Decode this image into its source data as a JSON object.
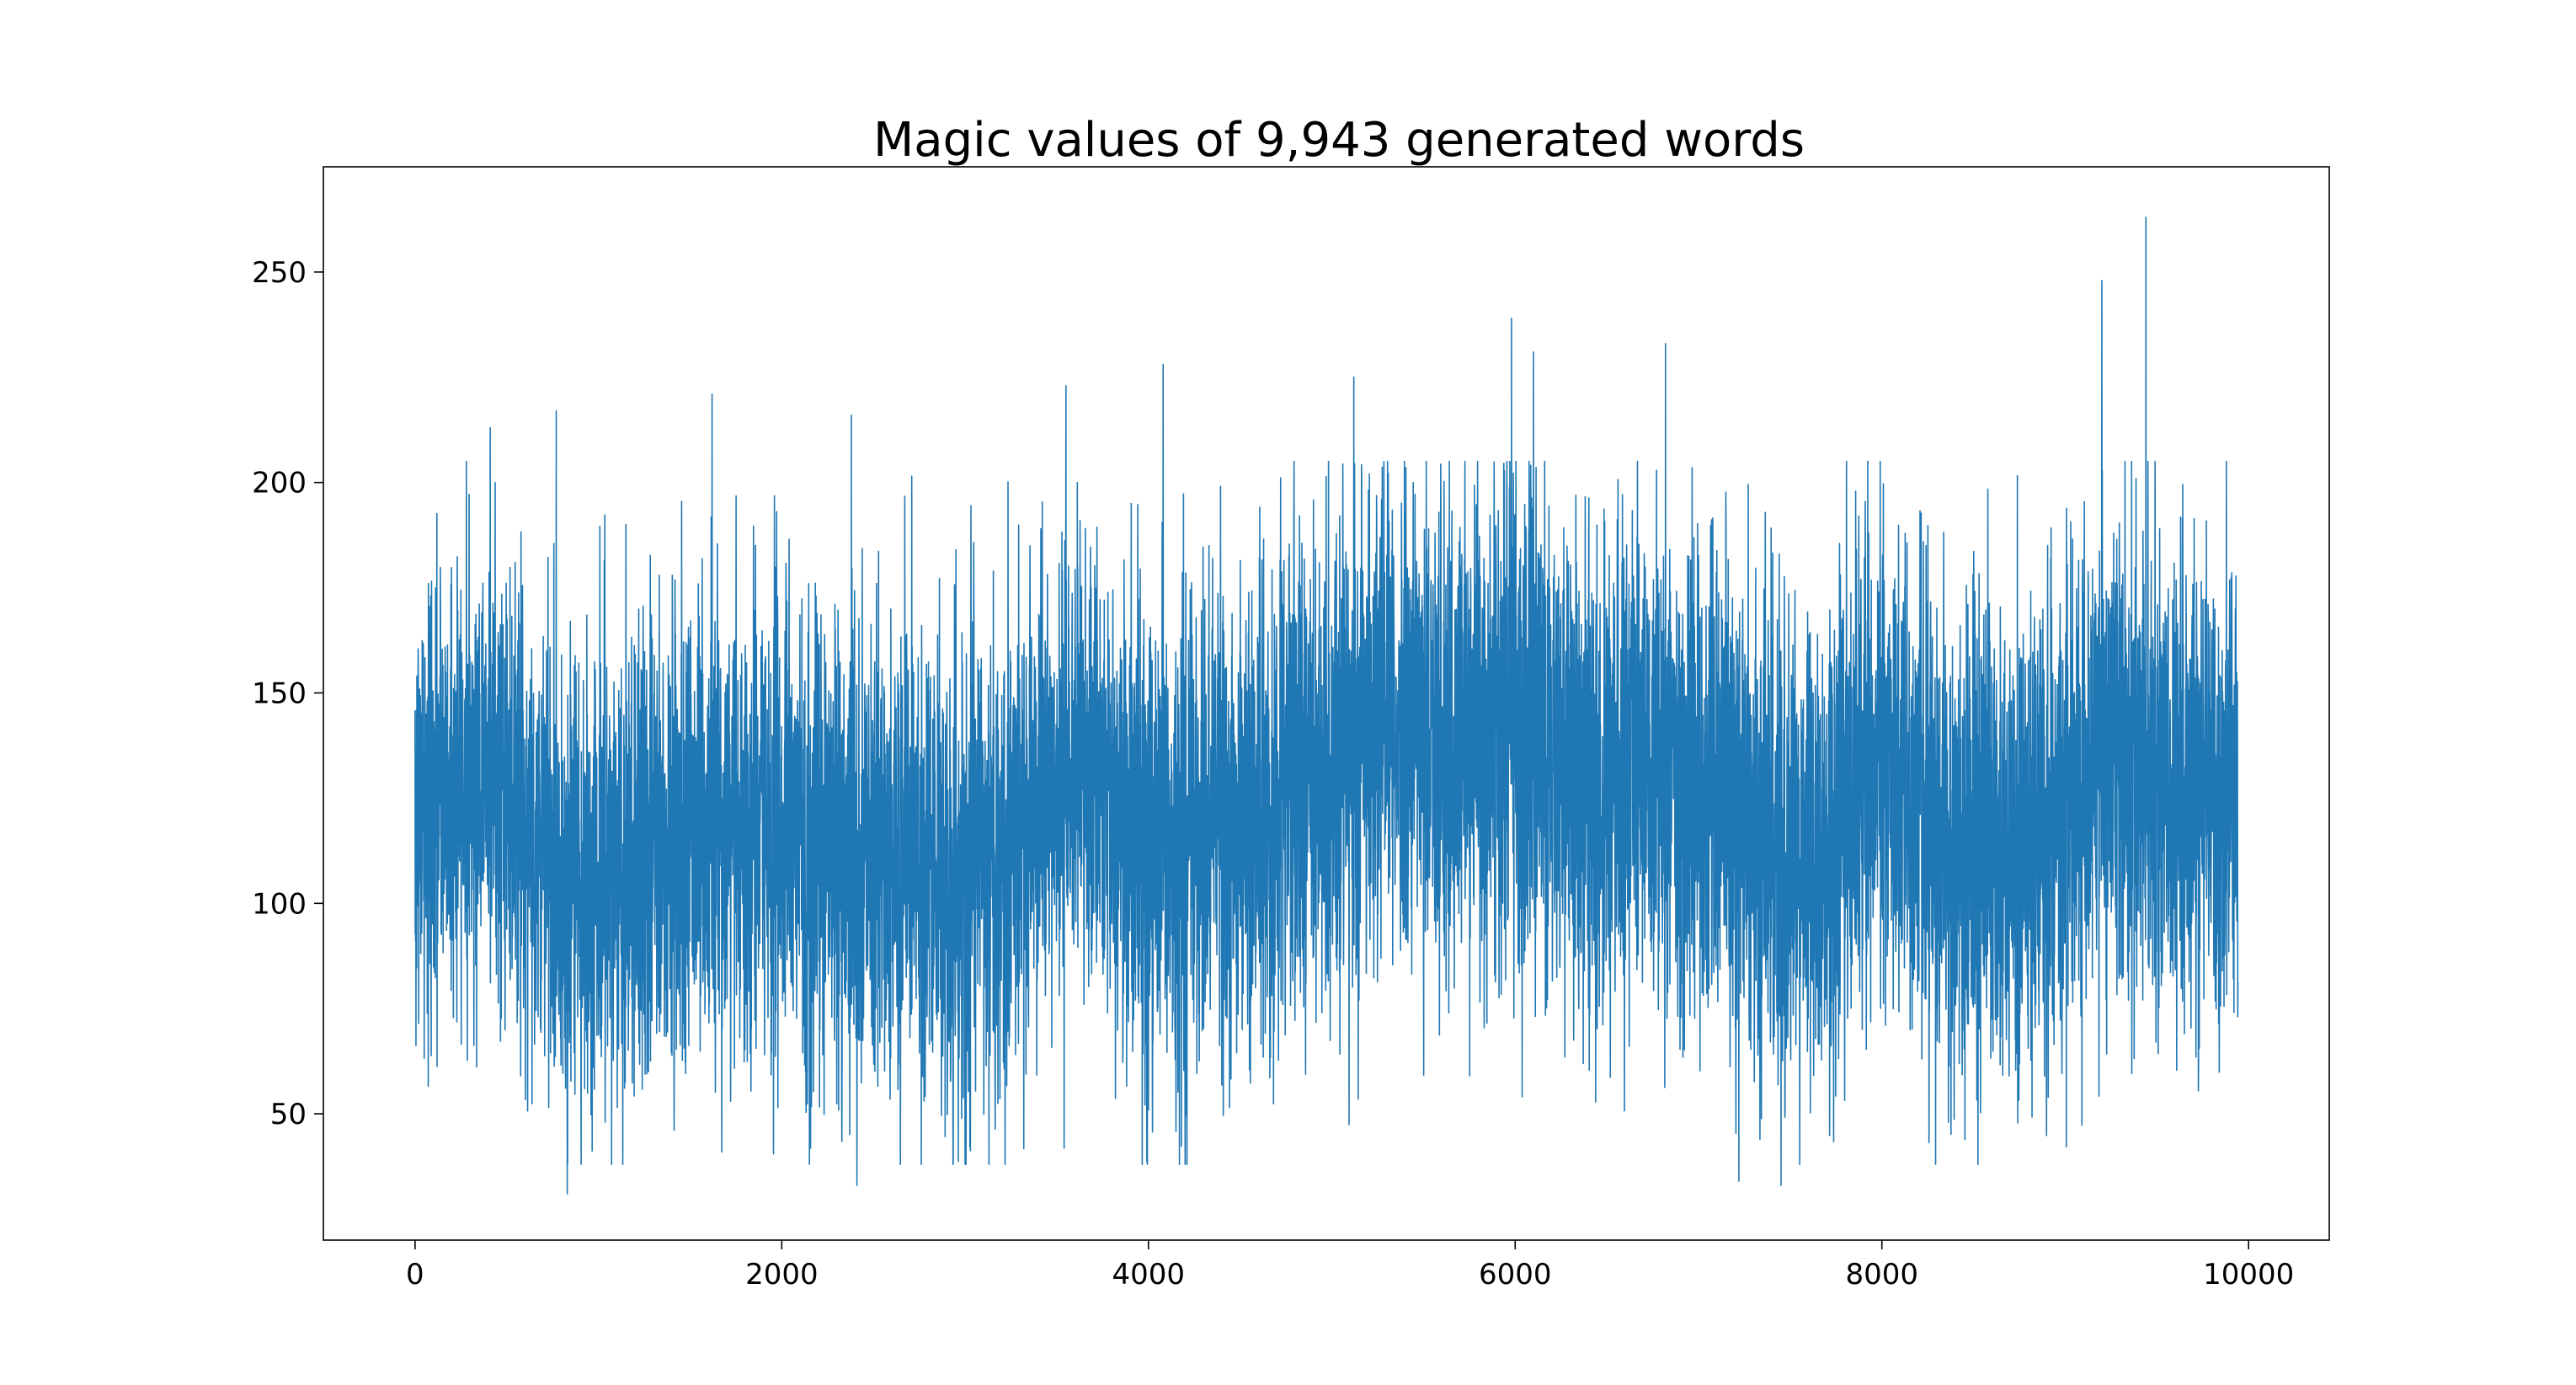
{
  "chart_data": {
    "type": "line",
    "title": "Magic values of 9,943 generated words",
    "xlabel": "",
    "ylabel": "",
    "n_points": 9943,
    "xlim": [
      -500,
      10440
    ],
    "ylim": [
      20,
      275
    ],
    "xticks": [
      0,
      2000,
      4000,
      6000,
      8000,
      10000
    ],
    "yticks": [
      50,
      100,
      150,
      200,
      250
    ],
    "xtick_labels": [
      "0",
      "2000",
      "4000",
      "6000",
      "8000",
      "10000"
    ],
    "ytick_labels": [
      "50",
      "100",
      "150",
      "200",
      "250"
    ],
    "grid": false,
    "legend": "none",
    "line_color": "#1f77b4",
    "series": [
      {
        "x": [
          0,
          400,
          800,
          1200,
          1600,
          2000,
          2400,
          2800,
          3200,
          3600,
          4000,
          4400,
          4800,
          5200,
          5600,
          6000,
          6400,
          6800,
          7200,
          7600,
          8000,
          8400,
          8800,
          9200,
          9600,
          9942
        ],
        "mean": [
          120,
          135,
          105,
          110,
          120,
          115,
          112,
          108,
          110,
          135,
          110,
          120,
          125,
          145,
          140,
          140,
          130,
          135,
          125,
          110,
          135,
          110,
          115,
          135,
          130,
          125
        ],
        "spread": [
          45,
          40,
          45,
          45,
          45,
          45,
          45,
          45,
          45,
          45,
          50,
          45,
          45,
          45,
          45,
          50,
          45,
          45,
          45,
          45,
          45,
          45,
          45,
          45,
          45,
          45
        ],
        "peaks": [
          {
            "x": 410,
            "y": 213
          },
          {
            "x": 770,
            "y": 217
          },
          {
            "x": 830,
            "y": 31
          },
          {
            "x": 1620,
            "y": 221
          },
          {
            "x": 2380,
            "y": 216
          },
          {
            "x": 2410,
            "y": 33
          },
          {
            "x": 3550,
            "y": 223
          },
          {
            "x": 4080,
            "y": 228
          },
          {
            "x": 5120,
            "y": 225
          },
          {
            "x": 5980,
            "y": 239
          },
          {
            "x": 6100,
            "y": 231
          },
          {
            "x": 6820,
            "y": 233
          },
          {
            "x": 7220,
            "y": 34
          },
          {
            "x": 7450,
            "y": 33
          },
          {
            "x": 9200,
            "y": 248
          },
          {
            "x": 9440,
            "y": 263
          }
        ]
      }
    ]
  }
}
